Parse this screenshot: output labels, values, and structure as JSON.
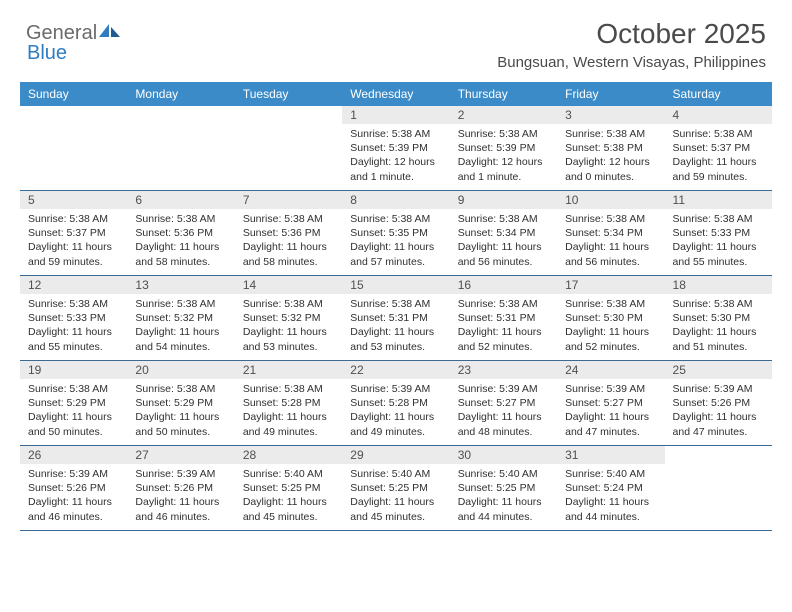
{
  "brand": {
    "part1": "General",
    "part2": "Blue"
  },
  "title": "October 2025",
  "location": "Bungsuan, Western Visayas, Philippines",
  "day_names": [
    "Sunday",
    "Monday",
    "Tuesday",
    "Wednesday",
    "Thursday",
    "Friday",
    "Saturday"
  ],
  "colors": {
    "header_bg": "#3b8bc8",
    "header_text": "#ffffff",
    "daynum_bg": "#ebebeb",
    "border": "#3b6a95",
    "brand_gray": "#6a6a6a",
    "brand_blue": "#2f7dc0"
  },
  "weeks": [
    [
      {
        "n": "",
        "sr": "",
        "ss": "",
        "dl": ""
      },
      {
        "n": "",
        "sr": "",
        "ss": "",
        "dl": ""
      },
      {
        "n": "",
        "sr": "",
        "ss": "",
        "dl": ""
      },
      {
        "n": "1",
        "sr": "Sunrise: 5:38 AM",
        "ss": "Sunset: 5:39 PM",
        "dl": "Daylight: 12 hours and 1 minute."
      },
      {
        "n": "2",
        "sr": "Sunrise: 5:38 AM",
        "ss": "Sunset: 5:39 PM",
        "dl": "Daylight: 12 hours and 1 minute."
      },
      {
        "n": "3",
        "sr": "Sunrise: 5:38 AM",
        "ss": "Sunset: 5:38 PM",
        "dl": "Daylight: 12 hours and 0 minutes."
      },
      {
        "n": "4",
        "sr": "Sunrise: 5:38 AM",
        "ss": "Sunset: 5:37 PM",
        "dl": "Daylight: 11 hours and 59 minutes."
      }
    ],
    [
      {
        "n": "5",
        "sr": "Sunrise: 5:38 AM",
        "ss": "Sunset: 5:37 PM",
        "dl": "Daylight: 11 hours and 59 minutes."
      },
      {
        "n": "6",
        "sr": "Sunrise: 5:38 AM",
        "ss": "Sunset: 5:36 PM",
        "dl": "Daylight: 11 hours and 58 minutes."
      },
      {
        "n": "7",
        "sr": "Sunrise: 5:38 AM",
        "ss": "Sunset: 5:36 PM",
        "dl": "Daylight: 11 hours and 58 minutes."
      },
      {
        "n": "8",
        "sr": "Sunrise: 5:38 AM",
        "ss": "Sunset: 5:35 PM",
        "dl": "Daylight: 11 hours and 57 minutes."
      },
      {
        "n": "9",
        "sr": "Sunrise: 5:38 AM",
        "ss": "Sunset: 5:34 PM",
        "dl": "Daylight: 11 hours and 56 minutes."
      },
      {
        "n": "10",
        "sr": "Sunrise: 5:38 AM",
        "ss": "Sunset: 5:34 PM",
        "dl": "Daylight: 11 hours and 56 minutes."
      },
      {
        "n": "11",
        "sr": "Sunrise: 5:38 AM",
        "ss": "Sunset: 5:33 PM",
        "dl": "Daylight: 11 hours and 55 minutes."
      }
    ],
    [
      {
        "n": "12",
        "sr": "Sunrise: 5:38 AM",
        "ss": "Sunset: 5:33 PM",
        "dl": "Daylight: 11 hours and 55 minutes."
      },
      {
        "n": "13",
        "sr": "Sunrise: 5:38 AM",
        "ss": "Sunset: 5:32 PM",
        "dl": "Daylight: 11 hours and 54 minutes."
      },
      {
        "n": "14",
        "sr": "Sunrise: 5:38 AM",
        "ss": "Sunset: 5:32 PM",
        "dl": "Daylight: 11 hours and 53 minutes."
      },
      {
        "n": "15",
        "sr": "Sunrise: 5:38 AM",
        "ss": "Sunset: 5:31 PM",
        "dl": "Daylight: 11 hours and 53 minutes."
      },
      {
        "n": "16",
        "sr": "Sunrise: 5:38 AM",
        "ss": "Sunset: 5:31 PM",
        "dl": "Daylight: 11 hours and 52 minutes."
      },
      {
        "n": "17",
        "sr": "Sunrise: 5:38 AM",
        "ss": "Sunset: 5:30 PM",
        "dl": "Daylight: 11 hours and 52 minutes."
      },
      {
        "n": "18",
        "sr": "Sunrise: 5:38 AM",
        "ss": "Sunset: 5:30 PM",
        "dl": "Daylight: 11 hours and 51 minutes."
      }
    ],
    [
      {
        "n": "19",
        "sr": "Sunrise: 5:38 AM",
        "ss": "Sunset: 5:29 PM",
        "dl": "Daylight: 11 hours and 50 minutes."
      },
      {
        "n": "20",
        "sr": "Sunrise: 5:38 AM",
        "ss": "Sunset: 5:29 PM",
        "dl": "Daylight: 11 hours and 50 minutes."
      },
      {
        "n": "21",
        "sr": "Sunrise: 5:38 AM",
        "ss": "Sunset: 5:28 PM",
        "dl": "Daylight: 11 hours and 49 minutes."
      },
      {
        "n": "22",
        "sr": "Sunrise: 5:39 AM",
        "ss": "Sunset: 5:28 PM",
        "dl": "Daylight: 11 hours and 49 minutes."
      },
      {
        "n": "23",
        "sr": "Sunrise: 5:39 AM",
        "ss": "Sunset: 5:27 PM",
        "dl": "Daylight: 11 hours and 48 minutes."
      },
      {
        "n": "24",
        "sr": "Sunrise: 5:39 AM",
        "ss": "Sunset: 5:27 PM",
        "dl": "Daylight: 11 hours and 47 minutes."
      },
      {
        "n": "25",
        "sr": "Sunrise: 5:39 AM",
        "ss": "Sunset: 5:26 PM",
        "dl": "Daylight: 11 hours and 47 minutes."
      }
    ],
    [
      {
        "n": "26",
        "sr": "Sunrise: 5:39 AM",
        "ss": "Sunset: 5:26 PM",
        "dl": "Daylight: 11 hours and 46 minutes."
      },
      {
        "n": "27",
        "sr": "Sunrise: 5:39 AM",
        "ss": "Sunset: 5:26 PM",
        "dl": "Daylight: 11 hours and 46 minutes."
      },
      {
        "n": "28",
        "sr": "Sunrise: 5:40 AM",
        "ss": "Sunset: 5:25 PM",
        "dl": "Daylight: 11 hours and 45 minutes."
      },
      {
        "n": "29",
        "sr": "Sunrise: 5:40 AM",
        "ss": "Sunset: 5:25 PM",
        "dl": "Daylight: 11 hours and 45 minutes."
      },
      {
        "n": "30",
        "sr": "Sunrise: 5:40 AM",
        "ss": "Sunset: 5:25 PM",
        "dl": "Daylight: 11 hours and 44 minutes."
      },
      {
        "n": "31",
        "sr": "Sunrise: 5:40 AM",
        "ss": "Sunset: 5:24 PM",
        "dl": "Daylight: 11 hours and 44 minutes."
      },
      {
        "n": "",
        "sr": "",
        "ss": "",
        "dl": ""
      }
    ]
  ]
}
